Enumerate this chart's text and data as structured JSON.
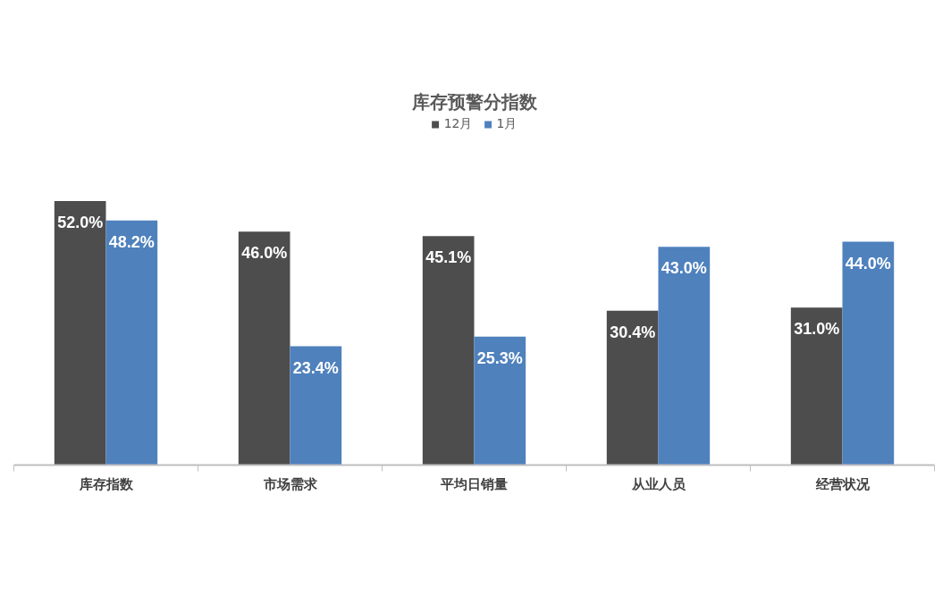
{
  "chart_data": {
    "type": "bar",
    "title": "库存预警分指数",
    "categories": [
      "库存指数",
      "市场需求",
      "平均日销量",
      "从业人员",
      "经营状况"
    ],
    "series": [
      {
        "name": "12月",
        "color": "#4d4d4d",
        "values": [
          52.0,
          46.0,
          45.1,
          30.4,
          31.0
        ],
        "value_labels": [
          "52.0%",
          "46.0%",
          "45.1%",
          "30.4%",
          "31.0%"
        ]
      },
      {
        "name": "1月",
        "color": "#4f81bd",
        "values": [
          48.2,
          23.4,
          25.3,
          43.0,
          44.0
        ],
        "value_labels": [
          "48.2%",
          "23.4%",
          "25.3%",
          "43.0%",
          "44.0%"
        ]
      }
    ],
    "legend": "top"
  }
}
